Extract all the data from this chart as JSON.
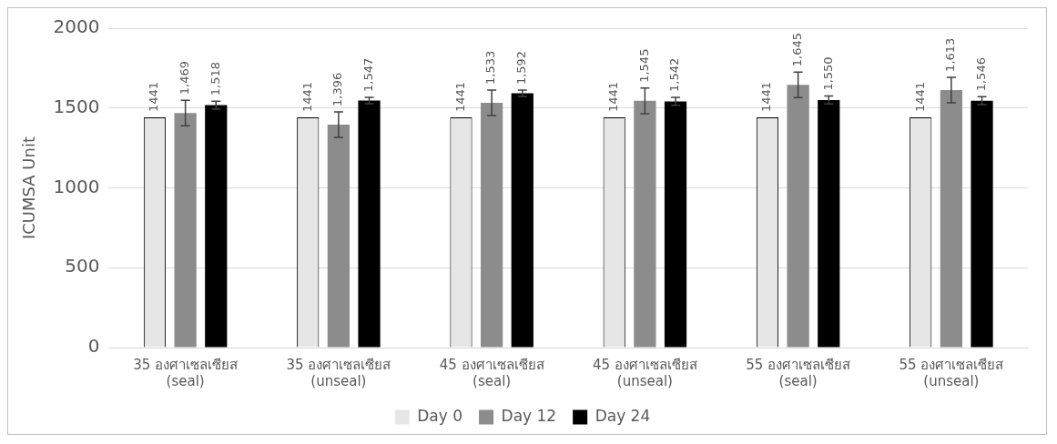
{
  "chart_data": {
    "type": "bar",
    "ylabel": "ICUMSA Unit",
    "categories": [
      "35 องศาเซลเซียส\n(seal)",
      "35 องศาเซลเซียส\n(unseal)",
      "45 องศาเซลเซียส\n(seal)",
      "45 องศาเซลเซียส\n(unseal)",
      "55 องศาเซลเซียส\n(seal)",
      "55 องศาเซลเซียส\n(unseal)"
    ],
    "series": [
      {
        "name": "Day 0",
        "color": "#e6e6e6",
        "values": [
          1441,
          1441,
          1441,
          1441,
          1441,
          1441
        ],
        "value_labels": [
          "1441",
          "1441",
          "1441",
          "1441",
          "1441",
          "1441"
        ]
      },
      {
        "name": "Day 12",
        "color": "#8c8c8c",
        "values": [
          1469,
          1396,
          1533,
          1545,
          1645,
          1613
        ],
        "errors": [
          80,
          80,
          80,
          80,
          80,
          80
        ],
        "value_labels": [
          "1,469",
          "1,396",
          "1,533",
          "1,545",
          "1,645",
          "1,613"
        ]
      },
      {
        "name": "Day 24",
        "color": "#000000",
        "values": [
          1518,
          1547,
          1592,
          1542,
          1550,
          1546
        ],
        "errors": [
          25,
          20,
          20,
          25,
          25,
          25
        ],
        "value_labels": [
          "1,518",
          "1,547",
          "1,592",
          "1,542",
          "1,550",
          "1,546"
        ]
      }
    ],
    "ylim": [
      0,
      2000
    ],
    "yticks": [
      0,
      500,
      1000,
      1500,
      2000
    ],
    "grid": "y",
    "legend": "bottom"
  }
}
